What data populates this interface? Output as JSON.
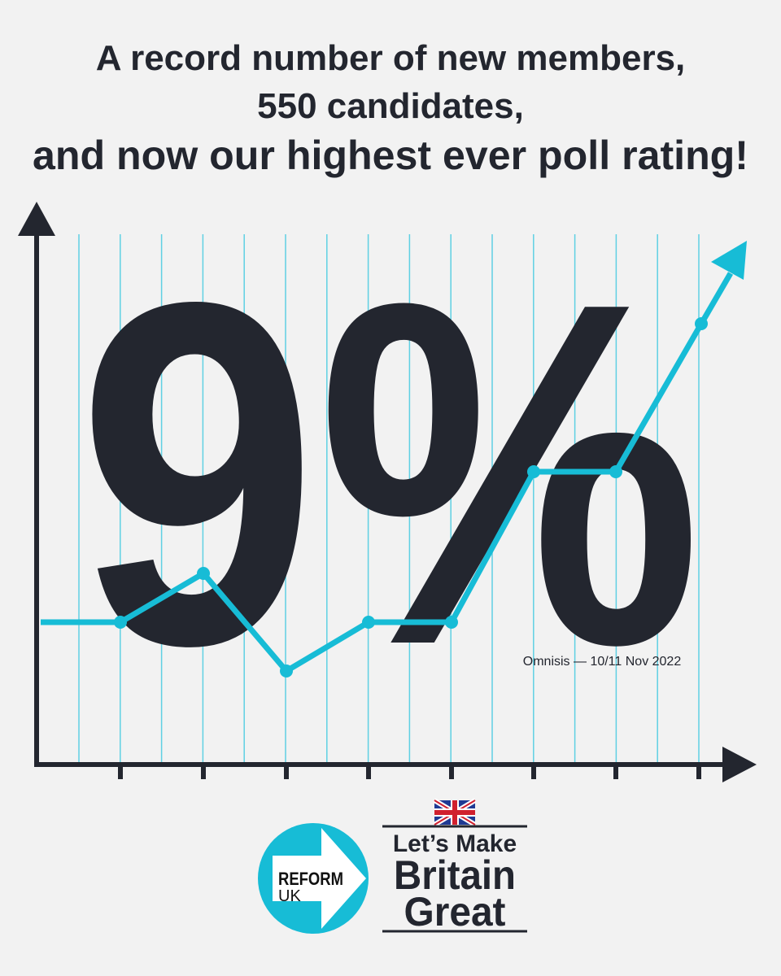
{
  "headline": {
    "line1": "A record number of new members,",
    "line2": "550 candidates,",
    "line3": "and now our highest ever poll rating!"
  },
  "big_figure": "9%",
  "source": "Omnisis — 10/11 Nov 2022",
  "logo": {
    "line1": "REFORM",
    "line2": "UK"
  },
  "slogan": {
    "line1": "Let’s Make",
    "line2": "Britain",
    "line3": "Great"
  }
}
